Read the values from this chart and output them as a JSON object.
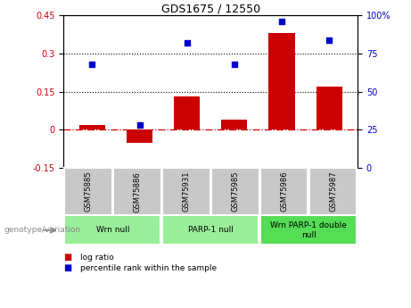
{
  "title": "GDS1675 / 12550",
  "samples": [
    "GSM75885",
    "GSM75886",
    "GSM75931",
    "GSM75985",
    "GSM75986",
    "GSM75987"
  ],
  "log_ratio": [
    0.02,
    -0.05,
    0.13,
    0.04,
    0.38,
    0.17
  ],
  "percentile_rank": [
    68,
    28,
    82,
    68,
    96,
    84
  ],
  "bar_color": "#cc0000",
  "dot_color": "#0000cc",
  "ylim_left": [
    -0.15,
    0.45
  ],
  "ylim_right": [
    0,
    100
  ],
  "yticks_left": [
    -0.15,
    0.0,
    0.15,
    0.3,
    0.45
  ],
  "yticks_right": [
    0,
    25,
    50,
    75,
    100
  ],
  "hlines": [
    0.15,
    0.3
  ],
  "zero_line_color": "#cc0000",
  "hline_color": "#000000",
  "groups": [
    {
      "label": "Wrn null",
      "start": 0,
      "end": 2,
      "color": "#99ee99"
    },
    {
      "label": "PARP-1 null",
      "start": 2,
      "end": 4,
      "color": "#99ee99"
    },
    {
      "label": "Wrn PARP-1 double\nnull",
      "start": 4,
      "end": 6,
      "color": "#55dd55"
    }
  ],
  "legend_log_ratio": "log ratio",
  "legend_percentile": "percentile rank within the sample",
  "genotype_label": "genotype/variation",
  "tick_color_left": "#cc0000",
  "tick_color_right": "#0000cc",
  "right_yticklabels": [
    "0",
    "25",
    "50",
    "75",
    "100%"
  ],
  "sample_box_color": "#c8c8c8",
  "bar_width": 0.55
}
